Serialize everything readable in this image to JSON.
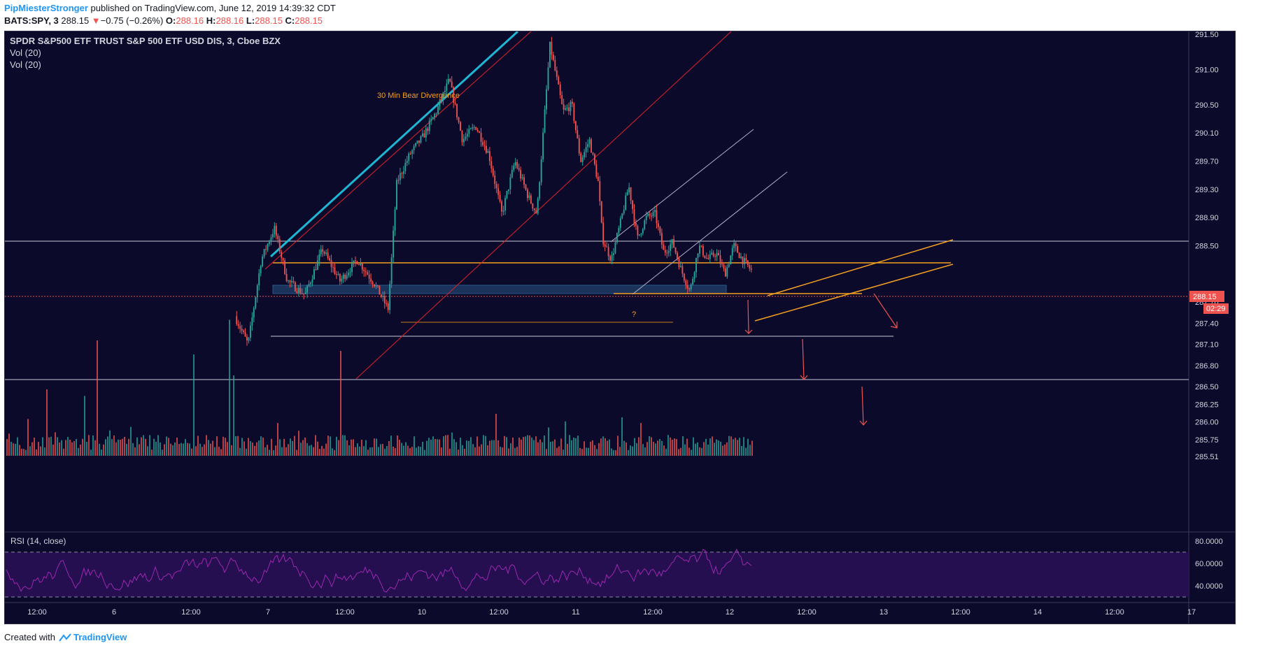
{
  "header": {
    "author": "PipMiesterStronger",
    "published": " published on TradingView.com, June 12, 2019 14:39:32 CDT",
    "symbol": "BATS:SPY, 3",
    "price": "288.15",
    "arrow": "▼",
    "change": "−0.75 (−0.26%)",
    "o_label": "O:",
    "o_val": "288.16",
    "h_label": "H:",
    "h_val": "288.16",
    "l_label": "L:",
    "l_val": "288.15",
    "c_label": "C:",
    "c_val": "288.15"
  },
  "legend": {
    "symbol": "SPDR S&P500 ETF TRUST S&P 500 ETF USD DIS, 3, Cboe BZX",
    "vol1": "Vol (20)",
    "vol2": "Vol (20)"
  },
  "footer": {
    "created_with": "Created with",
    "brand": "TradingView"
  },
  "colors": {
    "background": "#0c0a2b",
    "up": "#26a69a",
    "down": "#ef5350",
    "orange": "#f4a020",
    "cyan": "#1fb6d4",
    "rsi": "#9c27b0"
  },
  "chart_data": [
    {
      "type": "candlestick",
      "annotations": [
        "30 Min Bear Divergence",
        "?"
      ],
      "ylim": [
        285.51,
        291.5
      ],
      "y_ticks": [
        "291.50",
        "291.00",
        "290.50",
        "290.10",
        "289.70",
        "289.30",
        "288.90",
        "288.50",
        "288.15",
        "287.70",
        "287.40",
        "287.10",
        "286.80",
        "286.50",
        "286.25",
        "286.00",
        "285.75",
        "285.51"
      ],
      "x_ticks": [
        "12:00",
        "6",
        "12:00",
        "7",
        "12:00",
        "10",
        "12:00",
        "11",
        "12:00",
        "12",
        "12:00",
        "13",
        "12:00",
        "14",
        "12:00",
        "17"
      ],
      "last_price": "288.15",
      "countdown": "02:29",
      "horizontal_levels": [
        288.9,
        288.6,
        287.7,
        287.1
      ],
      "price_path": [
        [
          0,
          287.5
        ],
        [
          0.03,
          287.1
        ],
        [
          0.06,
          288.3
        ],
        [
          0.09,
          288.75
        ],
        [
          0.12,
          288.0
        ],
        [
          0.16,
          287.8
        ],
        [
          0.2,
          288.45
        ],
        [
          0.24,
          288.0
        ],
        [
          0.28,
          288.3
        ],
        [
          0.32,
          287.95
        ],
        [
          0.35,
          287.6
        ],
        [
          0.37,
          289.4
        ],
        [
          0.4,
          289.8
        ],
        [
          0.43,
          290.05
        ],
        [
          0.46,
          290.4
        ],
        [
          0.49,
          290.85
        ],
        [
          0.52,
          290.0
        ],
        [
          0.55,
          290.2
        ],
        [
          0.58,
          289.8
        ],
        [
          0.61,
          288.95
        ],
        [
          0.64,
          289.7
        ],
        [
          0.67,
          289.2
        ],
        [
          0.69,
          288.95
        ],
        [
          0.72,
          291.35
        ],
        [
          0.75,
          290.4
        ],
        [
          0.77,
          290.5
        ],
        [
          0.79,
          289.7
        ],
        [
          0.81,
          290.0
        ],
        [
          0.83,
          289.4
        ],
        [
          0.84,
          288.6
        ],
        [
          0.86,
          288.3
        ],
        [
          0.88,
          288.8
        ],
        [
          0.9,
          289.35
        ],
        [
          0.92,
          288.6
        ],
        [
          0.94,
          288.9
        ],
        [
          0.96,
          288.95
        ],
        [
          0.98,
          288.4
        ],
        [
          1.0,
          288.55
        ],
        [
          1.02,
          288.15
        ],
        [
          1.04,
          287.85
        ],
        [
          1.06,
          288.5
        ],
        [
          1.08,
          288.3
        ],
        [
          1.1,
          288.4
        ],
        [
          1.12,
          288.1
        ],
        [
          1.14,
          288.5
        ],
        [
          1.16,
          288.3
        ],
        [
          1.18,
          288.15
        ]
      ]
    },
    {
      "type": "line",
      "title": "RSI (14, close)",
      "ylim": [
        25,
        88
      ],
      "y_ticks": [
        "80.0000",
        "60.0000",
        "40.0000"
      ],
      "bands": [
        70,
        30
      ]
    }
  ]
}
